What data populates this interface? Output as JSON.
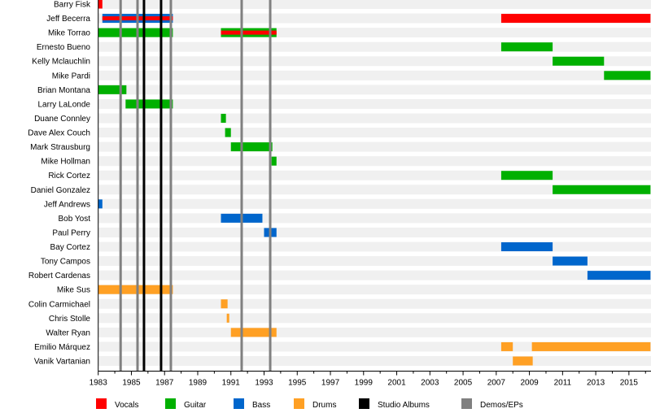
{
  "chart_data": {
    "type": "timeline",
    "title": "",
    "xlabel": "",
    "ylabel": "",
    "xlim": [
      1983,
      2016.3
    ],
    "x_ticks": [
      1983,
      1985,
      1987,
      1989,
      1991,
      1993,
      1995,
      1997,
      1999,
      2001,
      2003,
      2005,
      2007,
      2009,
      2011,
      2013,
      2015
    ],
    "legend_position": "bottom",
    "colors": {
      "Vocals": "#ff0000",
      "Guitar": "#00b000",
      "Bass": "#0066cc",
      "Drums": "#ffa024",
      "Studio Albums": "#000000",
      "Demos/EPs": "#808080",
      "row_stripe": "#f0f0f0"
    },
    "legend": [
      {
        "label": "Vocals",
        "key": "Vocals"
      },
      {
        "label": "Guitar",
        "key": "Guitar"
      },
      {
        "label": "Bass",
        "key": "Bass"
      },
      {
        "label": "Drums",
        "key": "Drums"
      },
      {
        "label": "Studio Albums",
        "key": "Studio Albums"
      },
      {
        "label": "Demos/EPs",
        "key": "Demos/EPs"
      }
    ],
    "members": [
      {
        "name": "Barry Fisk",
        "bars": [
          {
            "role": "Vocals",
            "start": 1983.0,
            "end": 1983.25
          }
        ]
      },
      {
        "name": "Jeff Becerra",
        "bars": [
          {
            "role": "Bass",
            "start": 1983.25,
            "end": 1987.5,
            "secondary": "Vocals"
          },
          {
            "role": "Vocals",
            "start": 2007.3,
            "end": 2016.3
          }
        ]
      },
      {
        "name": "Mike Torrao",
        "bars": [
          {
            "role": "Guitar",
            "start": 1983.0,
            "end": 1987.5
          },
          {
            "role": "Guitar",
            "start": 1990.4,
            "end": 1993.75,
            "secondary": "Vocals"
          }
        ]
      },
      {
        "name": "Ernesto Bueno",
        "bars": [
          {
            "role": "Guitar",
            "start": 2007.3,
            "end": 2010.4
          }
        ]
      },
      {
        "name": "Kelly Mclauchlin",
        "bars": [
          {
            "role": "Guitar",
            "start": 2010.4,
            "end": 2013.5
          }
        ]
      },
      {
        "name": "Mike Pardi",
        "bars": [
          {
            "role": "Guitar",
            "start": 2013.5,
            "end": 2016.3
          }
        ]
      },
      {
        "name": "Brian Montana",
        "bars": [
          {
            "role": "Guitar",
            "start": 1983.0,
            "end": 1984.7
          }
        ]
      },
      {
        "name": "Larry LaLonde",
        "bars": [
          {
            "role": "Guitar",
            "start": 1984.65,
            "end": 1987.5
          }
        ]
      },
      {
        "name": "Duane Connley",
        "bars": [
          {
            "role": "Guitar",
            "start": 1990.4,
            "end": 1990.7
          }
        ]
      },
      {
        "name": "Dave Alex Couch",
        "bars": [
          {
            "role": "Guitar",
            "start": 1990.65,
            "end": 1991.0
          }
        ]
      },
      {
        "name": "Mark Strausburg",
        "bars": [
          {
            "role": "Guitar",
            "start": 1991.0,
            "end": 1993.5
          }
        ]
      },
      {
        "name": "Mike Hollman",
        "bars": [
          {
            "role": "Guitar",
            "start": 1993.45,
            "end": 1993.75
          }
        ]
      },
      {
        "name": "Rick Cortez",
        "bars": [
          {
            "role": "Guitar",
            "start": 2007.3,
            "end": 2010.4
          }
        ]
      },
      {
        "name": "Daniel Gonzalez",
        "bars": [
          {
            "role": "Guitar",
            "start": 2010.4,
            "end": 2016.3
          }
        ]
      },
      {
        "name": "Jeff Andrews",
        "bars": [
          {
            "role": "Bass",
            "start": 1983.0,
            "end": 1983.25
          }
        ]
      },
      {
        "name": "Bob Yost",
        "bars": [
          {
            "role": "Bass",
            "start": 1990.4,
            "end": 1992.9
          }
        ]
      },
      {
        "name": "Paul Perry",
        "bars": [
          {
            "role": "Bass",
            "start": 1993.0,
            "end": 1993.75
          }
        ]
      },
      {
        "name": "Bay Cortez",
        "bars": [
          {
            "role": "Bass",
            "start": 2007.3,
            "end": 2010.4
          }
        ]
      },
      {
        "name": "Tony Campos",
        "bars": [
          {
            "role": "Bass",
            "start": 2010.4,
            "end": 2012.5
          }
        ]
      },
      {
        "name": "Robert Cardenas",
        "bars": [
          {
            "role": "Bass",
            "start": 2012.5,
            "end": 2016.3
          }
        ]
      },
      {
        "name": "Mike Sus",
        "bars": [
          {
            "role": "Drums",
            "start": 1983.0,
            "end": 1987.5
          }
        ]
      },
      {
        "name": "Colin Carmichael",
        "bars": [
          {
            "role": "Drums",
            "start": 1990.4,
            "end": 1990.8
          }
        ]
      },
      {
        "name": "Chris Stolle",
        "bars": [
          {
            "role": "Drums",
            "start": 1990.75,
            "end": 1990.9
          }
        ]
      },
      {
        "name": "Walter Ryan",
        "bars": [
          {
            "role": "Drums",
            "start": 1991.0,
            "end": 1993.75
          }
        ]
      },
      {
        "name": "Emilio Márquez",
        "bars": [
          {
            "role": "Drums",
            "start": 2007.3,
            "end": 2008.0
          },
          {
            "role": "Drums",
            "start": 2009.15,
            "end": 2016.3
          }
        ]
      },
      {
        "name": "Vanik Vartanian",
        "bars": [
          {
            "role": "Drums",
            "start": 2008.0,
            "end": 2009.2
          }
        ]
      }
    ],
    "release_lines": [
      {
        "type": "Demos/EPs",
        "year": 1984.35
      },
      {
        "type": "Demos/EPs",
        "year": 1985.37
      },
      {
        "type": "Studio Albums",
        "year": 1985.76
      },
      {
        "type": "Studio Albums",
        "year": 1986.79
      },
      {
        "type": "Demos/EPs",
        "year": 1987.38
      },
      {
        "type": "Demos/EPs",
        "year": 1991.65
      },
      {
        "type": "Demos/EPs",
        "year": 1993.37
      }
    ]
  }
}
